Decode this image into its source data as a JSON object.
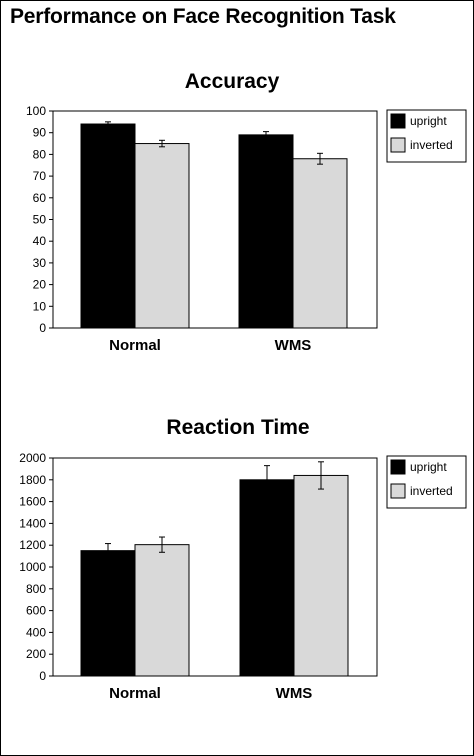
{
  "page": {
    "title": "Performance on Face Recognition Task"
  },
  "chart_data": [
    {
      "type": "bar",
      "title": "Accuracy",
      "xlabel": "",
      "ylabel": "",
      "categories": [
        "Normal",
        "WMS"
      ],
      "series": [
        {
          "name": "upright",
          "values": [
            94,
            89
          ],
          "errors": [
            1,
            1.5
          ],
          "color": "#000000"
        },
        {
          "name": "inverted",
          "values": [
            85,
            78
          ],
          "errors": [
            1.5,
            2.5
          ],
          "color": "#d9d9d9"
        }
      ],
      "ylim": [
        0,
        100
      ],
      "yticks": [
        0,
        10,
        20,
        30,
        40,
        50,
        60,
        70,
        80,
        90,
        100
      ],
      "grid": false,
      "legend": "right"
    },
    {
      "type": "bar",
      "title": "Reaction Time",
      "xlabel": "",
      "ylabel": "",
      "categories": [
        "Normal",
        "WMS"
      ],
      "series": [
        {
          "name": "upright",
          "values": [
            1150,
            1800
          ],
          "errors": [
            65,
            130
          ],
          "color": "#000000"
        },
        {
          "name": "inverted",
          "values": [
            1205,
            1840
          ],
          "errors": [
            70,
            125
          ],
          "color": "#d9d9d9"
        }
      ],
      "ylim": [
        0,
        2000
      ],
      "yticks": [
        0,
        200,
        400,
        600,
        800,
        1000,
        1200,
        1400,
        1600,
        1800,
        2000
      ],
      "grid": false,
      "legend": "right"
    }
  ]
}
